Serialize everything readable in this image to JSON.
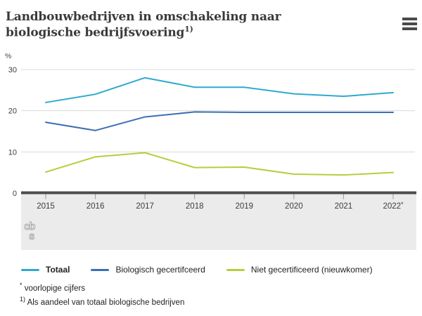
{
  "header": {
    "title": "Landbouwbedrijven in omschakeling naar biologische bedrijfsvoering",
    "title_footnote_marker": "1)",
    "menu_icon": "hamburger-menu"
  },
  "chart_data": {
    "type": "line",
    "unit_label": "%",
    "categories": [
      "2015",
      "2016",
      "2017",
      "2018",
      "2019",
      "2020",
      "2021",
      "2022*"
    ],
    "series": [
      {
        "name": "Totaal",
        "color": "#2fa9ce",
        "emphasized": true,
        "values": [
          22,
          24,
          28,
          25.7,
          25.7,
          24.1,
          23.5,
          24.4
        ]
      },
      {
        "name": "Biologisch gecertifceerd",
        "color": "#3a6fb7",
        "emphasized": false,
        "values": [
          17.2,
          15.2,
          18.5,
          19.7,
          19.6,
          19.6,
          19.6,
          19.6
        ]
      },
      {
        "name": "Niet gecertificeerd (nieuwkomer)",
        "color": "#b5ce3c",
        "emphasized": false,
        "values": [
          5.1,
          8.8,
          9.8,
          6.2,
          6.3,
          4.6,
          4.4,
          5.0
        ]
      }
    ],
    "yticks": [
      0,
      10,
      20,
      30
    ],
    "ylim": [
      0,
      33
    ],
    "grid": true,
    "legend_position": "bottom"
  },
  "logo": {
    "line1": "cb",
    "line2": "s"
  },
  "footnotes": [
    {
      "marker": "*",
      "text": "voorlopige cijfers"
    },
    {
      "marker": "1)",
      "text": "Als aandeel van totaal biologische bedrijven"
    }
  ]
}
